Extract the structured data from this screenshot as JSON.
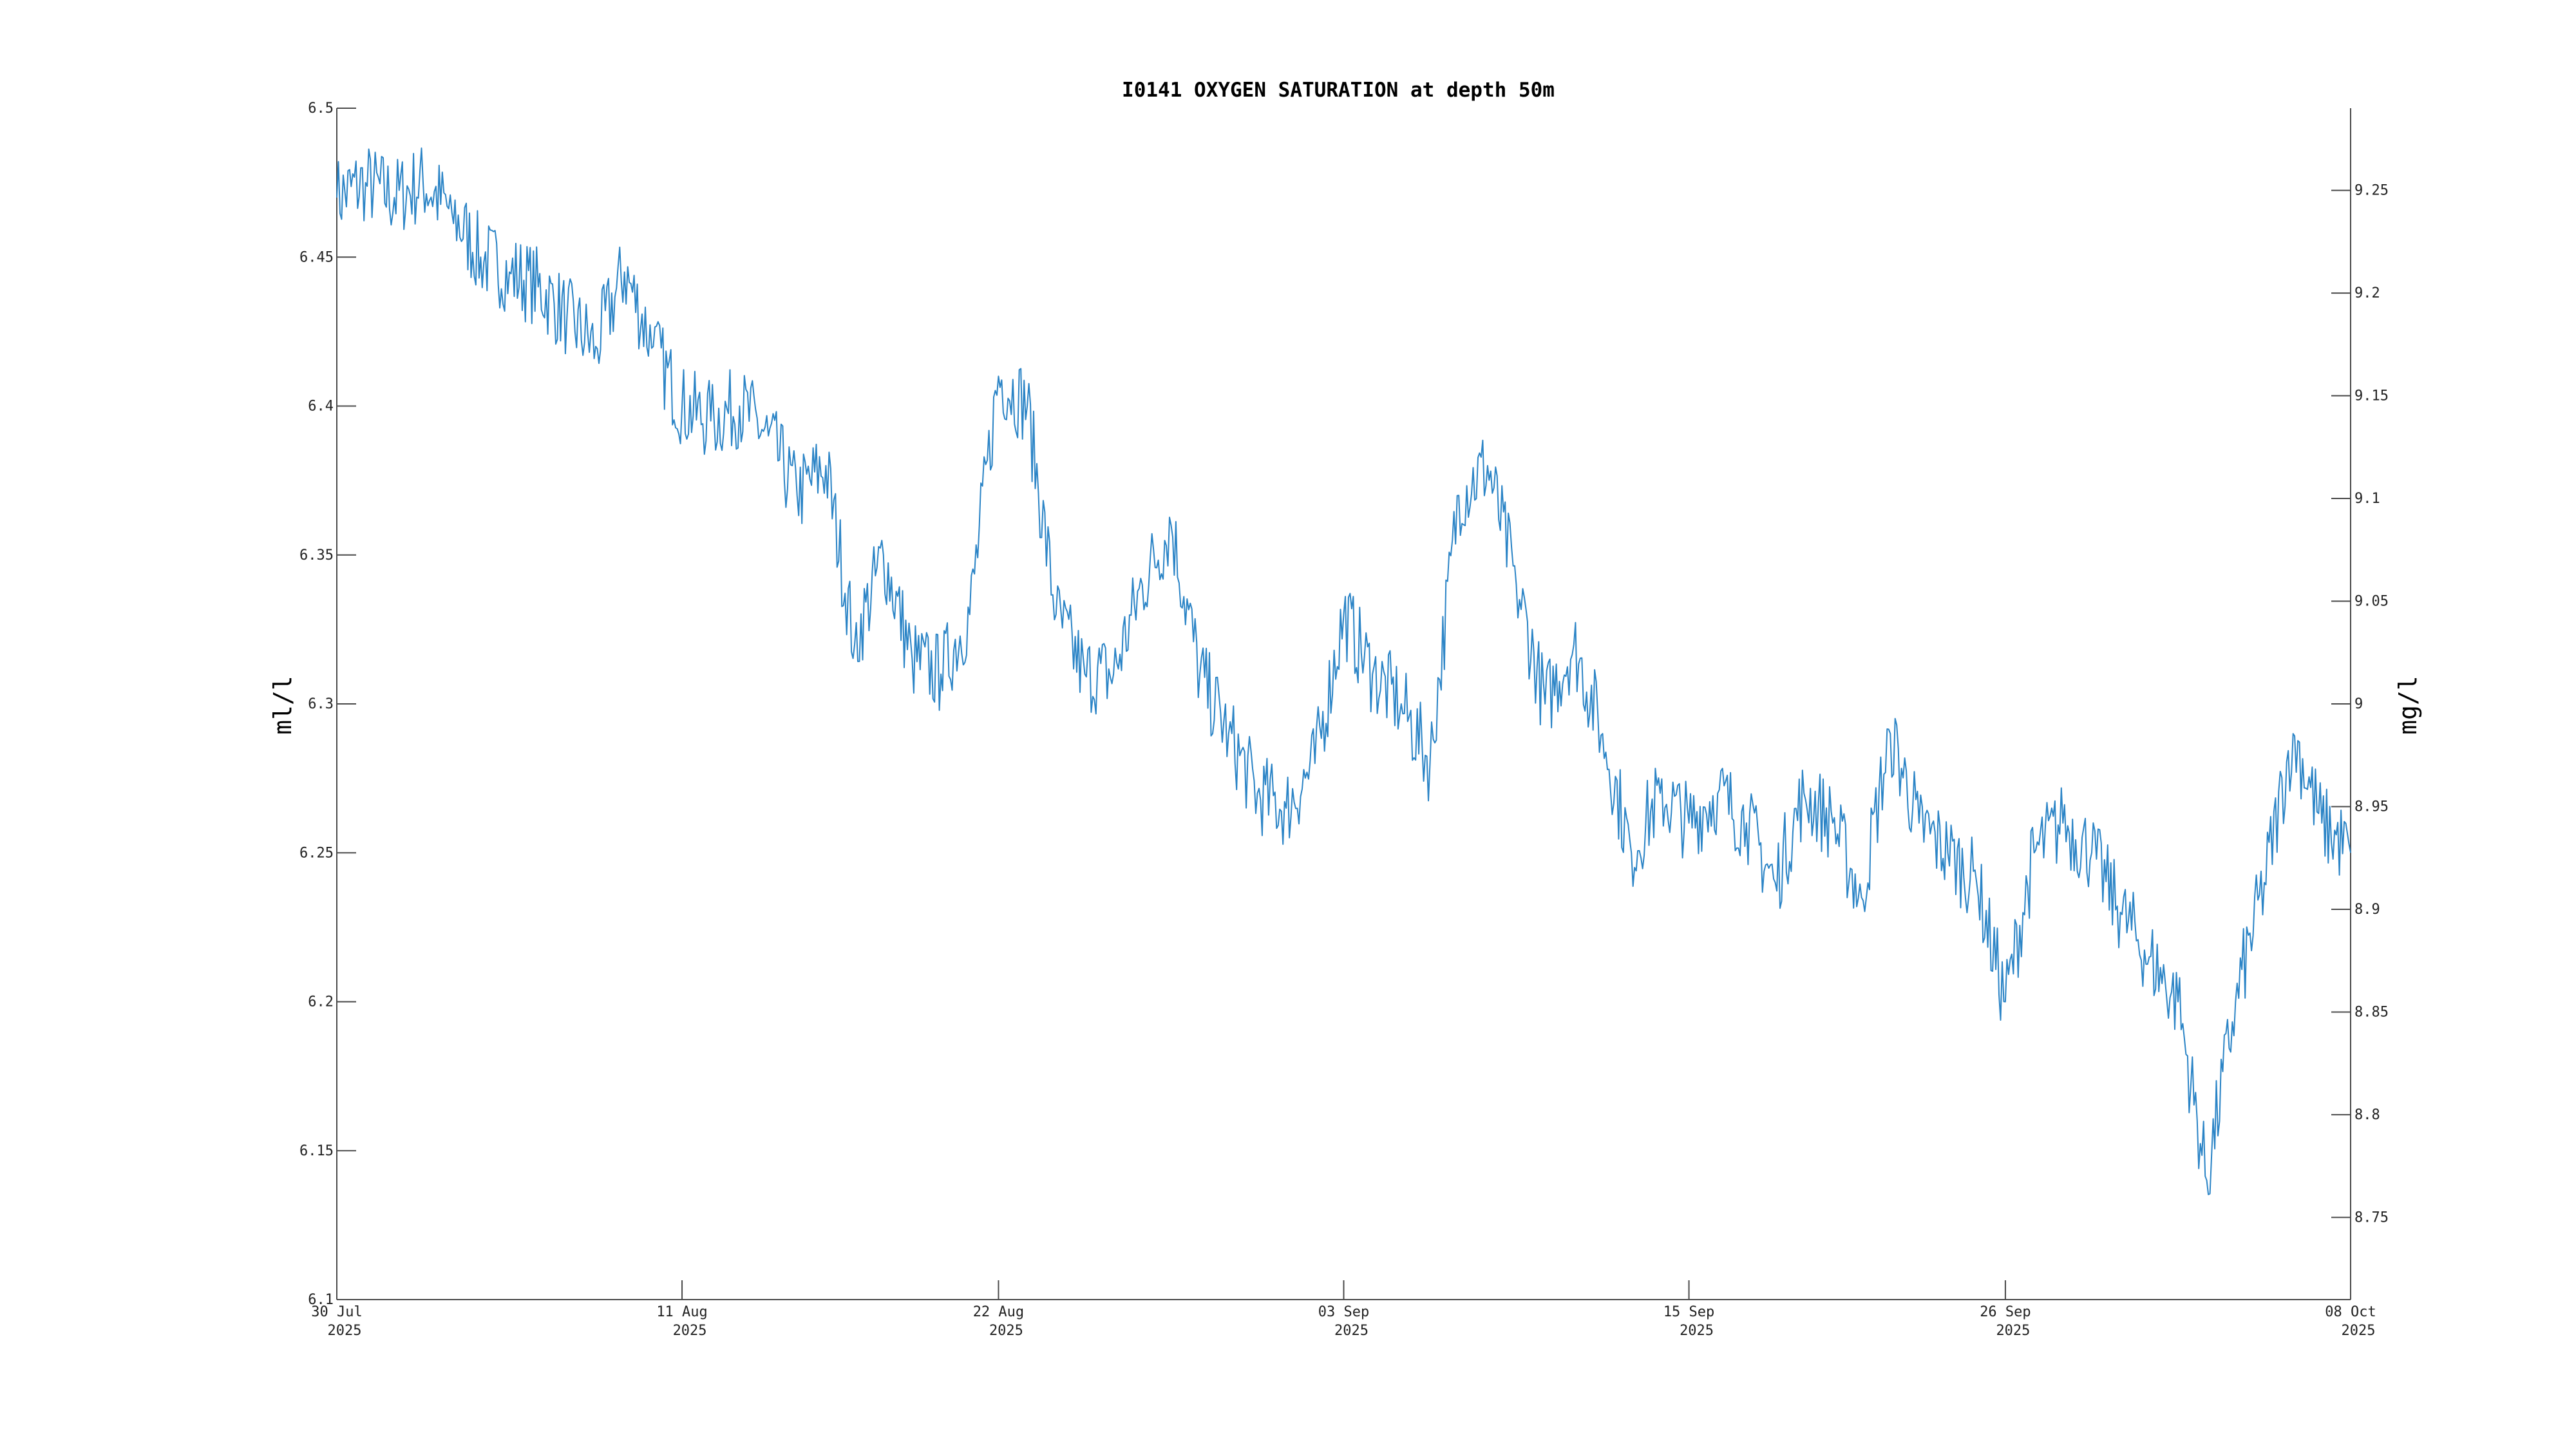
{
  "chart_data": {
    "type": "line",
    "title": "I0141 OXYGEN SATURATION at depth 50m",
    "xlabel": "",
    "ylabel": "ml/l",
    "ylabel_right": "mg/l",
    "xlim": [
      "2025-07-30",
      "2025-10-08"
    ],
    "ylim": [
      6.1,
      6.5
    ],
    "ylim_right": [
      8.71,
      9.29
    ],
    "grid": false,
    "legend": "none",
    "x_ticks": [
      {
        "date": "2025-07-30",
        "label1": "30 Jul",
        "label2": "2025"
      },
      {
        "date": "2025-08-11",
        "label1": "11 Aug",
        "label2": "2025"
      },
      {
        "date": "2025-08-22",
        "label1": "22 Aug",
        "label2": "2025"
      },
      {
        "date": "2025-09-03",
        "label1": "03 Sep",
        "label2": "2025"
      },
      {
        "date": "2025-09-15",
        "label1": "15 Sep",
        "label2": "2025"
      },
      {
        "date": "2025-09-26",
        "label1": "26 Sep",
        "label2": "2025"
      },
      {
        "date": "2025-10-08",
        "label1": "08 Oct",
        "label2": "2025"
      }
    ],
    "y_ticks": [
      {
        "value": 6.1,
        "label": "6.1"
      },
      {
        "value": 6.15,
        "label": "6.15"
      },
      {
        "value": 6.2,
        "label": "6.2"
      },
      {
        "value": 6.25,
        "label": "6.25"
      },
      {
        "value": 6.3,
        "label": "6.3"
      },
      {
        "value": 6.35,
        "label": "6.35"
      },
      {
        "value": 6.4,
        "label": "6.4"
      },
      {
        "value": 6.45,
        "label": "6.45"
      },
      {
        "value": 6.5,
        "label": "6.5"
      }
    ],
    "y_ticks_right": [
      {
        "value": 8.75,
        "label": "8.75"
      },
      {
        "value": 8.8,
        "label": "8.8"
      },
      {
        "value": 8.85,
        "label": "8.85"
      },
      {
        "value": 8.9,
        "label": "8.9"
      },
      {
        "value": 8.95,
        "label": "8.95"
      },
      {
        "value": 9.0,
        "label": "9"
      },
      {
        "value": 9.05,
        "label": "9.05"
      },
      {
        "value": 9.1,
        "label": "9.1"
      },
      {
        "value": 9.15,
        "label": "9.15"
      },
      {
        "value": 9.2,
        "label": "9.2"
      },
      {
        "value": 9.25,
        "label": "9.25"
      }
    ],
    "series": [
      {
        "color": "#2b84c6",
        "points": [
          [
            "2025-07-30",
            6.47
          ],
          [
            "2025-07-31",
            6.475
          ],
          [
            "2025-08-01",
            6.47
          ],
          [
            "2025-08-02",
            6.475
          ],
          [
            "2025-08-03",
            6.465
          ],
          [
            "2025-08-04",
            6.45
          ],
          [
            "2025-08-05",
            6.445
          ],
          [
            "2025-08-06",
            6.44
          ],
          [
            "2025-08-07",
            6.43
          ],
          [
            "2025-08-08",
            6.42
          ],
          [
            "2025-08-09",
            6.445
          ],
          [
            "2025-08-10",
            6.42
          ],
          [
            "2025-08-11",
            6.4
          ],
          [
            "2025-08-12",
            6.395
          ],
          [
            "2025-08-13",
            6.4
          ],
          [
            "2025-08-14",
            6.39
          ],
          [
            "2025-08-15",
            6.37
          ],
          [
            "2025-08-16",
            6.38
          ],
          [
            "2025-08-17",
            6.32
          ],
          [
            "2025-08-18",
            6.35
          ],
          [
            "2025-08-19",
            6.315
          ],
          [
            "2025-08-20",
            6.31
          ],
          [
            "2025-08-21",
            6.33
          ],
          [
            "2025-08-22",
            6.41
          ],
          [
            "2025-08-23",
            6.4
          ],
          [
            "2025-08-24",
            6.33
          ],
          [
            "2025-08-25",
            6.31
          ],
          [
            "2025-08-26",
            6.31
          ],
          [
            "2025-08-27",
            6.34
          ],
          [
            "2025-08-28",
            6.36
          ],
          [
            "2025-08-29",
            6.31
          ],
          [
            "2025-08-30",
            6.29
          ],
          [
            "2025-08-31",
            6.27
          ],
          [
            "2025-09-01",
            6.265
          ],
          [
            "2025-09-02",
            6.28
          ],
          [
            "2025-09-03",
            6.33
          ],
          [
            "2025-09-04",
            6.31
          ],
          [
            "2025-09-05",
            6.3
          ],
          [
            "2025-09-06",
            6.28
          ],
          [
            "2025-09-07",
            6.37
          ],
          [
            "2025-09-08",
            6.38
          ],
          [
            "2025-09-09",
            6.34
          ],
          [
            "2025-09-10",
            6.3
          ],
          [
            "2025-09-11",
            6.32
          ],
          [
            "2025-09-12",
            6.29
          ],
          [
            "2025-09-13",
            6.25
          ],
          [
            "2025-09-14",
            6.27
          ],
          [
            "2025-09-15",
            6.26
          ],
          [
            "2025-09-16",
            6.27
          ],
          [
            "2025-09-17",
            6.26
          ],
          [
            "2025-09-18",
            6.24
          ],
          [
            "2025-09-19",
            6.27
          ],
          [
            "2025-09-20",
            6.26
          ],
          [
            "2025-09-21",
            6.235
          ],
          [
            "2025-09-22",
            6.29
          ],
          [
            "2025-09-23",
            6.26
          ],
          [
            "2025-09-24",
            6.25
          ],
          [
            "2025-09-25",
            6.24
          ],
          [
            "2025-09-26",
            6.2
          ],
          [
            "2025-09-27",
            6.25
          ],
          [
            "2025-09-28",
            6.26
          ],
          [
            "2025-09-29",
            6.25
          ],
          [
            "2025-09-30",
            6.23
          ],
          [
            "2025-10-01",
            6.215
          ],
          [
            "2025-10-02",
            6.2
          ],
          [
            "2025-10-03",
            6.14
          ],
          [
            "2025-10-04",
            6.2
          ],
          [
            "2025-10-05",
            6.24
          ],
          [
            "2025-10-06",
            6.29
          ],
          [
            "2025-10-07",
            6.26
          ],
          [
            "2025-10-08",
            6.25
          ]
        ]
      }
    ]
  }
}
